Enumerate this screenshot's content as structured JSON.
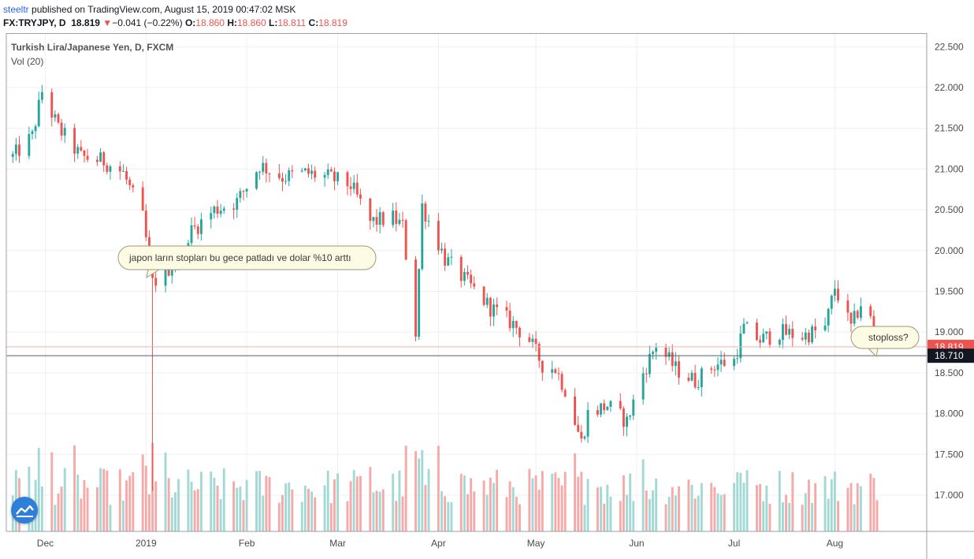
{
  "header": {
    "author": "steeltr",
    "published_text": " published on TradingView.com, August 15, 2019 00:47:02 MSK",
    "symbol": "FX:TRYJPY, D",
    "last": "18.819",
    "change_arrow": "▼",
    "change": "−0.041 (−0.22%)",
    "o_label": "O:",
    "o": "18.860",
    "h_label": "H:",
    "h": "18.860",
    "l_label": "L:",
    "l": "18.811",
    "c_label": "C:",
    "c": "18.819"
  },
  "legend": {
    "title": "Turkish Lira/Japanese Yen, D, FXCM",
    "volume": "Vol (20)"
  },
  "annotations": {
    "note1": "japon ların stopları bu gece patladı ve dolar %10 arttı",
    "note2": "stoploss?"
  },
  "colors": {
    "up": "#26a69a",
    "down": "#ef5350",
    "vol_up": "#a3d9d4",
    "vol_down": "#f5a9a8",
    "price_label_bg": "#ef5350",
    "line_label_bg": "#131722",
    "callout_bg": "#fdfbe3",
    "callout_border": "#9a9a7a",
    "logo": "#2e7fd9"
  },
  "chart_data": {
    "type": "candlestick",
    "title": "Turkish Lira/Japanese Yen, D, FXCM",
    "y_range": [
      16.55,
      22.7
    ],
    "y_ticks": [
      "22.500",
      "22.000",
      "21.500",
      "21.000",
      "20.500",
      "20.000",
      "19.500",
      "19.000",
      "18.500",
      "18.000",
      "17.500",
      "17.000"
    ],
    "x_ticks": [
      "Dec",
      "2019",
      "Feb",
      "Mar",
      "Apr",
      "May",
      "Jun",
      "Jul",
      "Aug"
    ],
    "last_price_label": "18.819",
    "horizontal_line_label": "18.710",
    "last_price": 18.819,
    "horizontal_line": 18.71,
    "volume_indicator": "Vol (20)",
    "anchors": [
      {
        "date": "2018-11-21",
        "price": 21.15
      },
      {
        "date": "2018-11-27",
        "price": 21.4
      },
      {
        "date": "2018-11-30",
        "price": 21.95
      },
      {
        "date": "2018-12-05",
        "price": 21.5
      },
      {
        "date": "2018-12-12",
        "price": 21.15
      },
      {
        "date": "2018-12-19",
        "price": 21.1
      },
      {
        "date": "2018-12-25",
        "price": 20.95
      },
      {
        "date": "2018-12-31",
        "price": 20.4
      },
      {
        "date": "2019-01-03",
        "price": 19.6
      },
      {
        "date": "2019-01-07",
        "price": 19.75
      },
      {
        "date": "2019-01-10",
        "price": 19.85
      },
      {
        "date": "2019-01-14",
        "price": 20.2
      },
      {
        "date": "2019-01-22",
        "price": 20.5
      },
      {
        "date": "2019-01-29",
        "price": 20.6
      },
      {
        "date": "2019-02-05",
        "price": 21.05
      },
      {
        "date": "2019-02-12",
        "price": 20.9
      },
      {
        "date": "2019-02-19",
        "price": 20.95
      },
      {
        "date": "2019-02-26",
        "price": 20.9
      },
      {
        "date": "2019-03-05",
        "price": 20.8
      },
      {
        "date": "2019-03-11",
        "price": 20.35
      },
      {
        "date": "2019-03-18",
        "price": 20.4
      },
      {
        "date": "2019-03-21",
        "price": 20.3
      },
      {
        "date": "2019-03-22",
        "price": 19.95
      },
      {
        "date": "2019-03-25",
        "price": 19.0
      },
      {
        "date": "2019-03-27",
        "price": 20.55
      },
      {
        "date": "2019-04-03",
        "price": 19.9
      },
      {
        "date": "2019-04-10",
        "price": 19.6
      },
      {
        "date": "2019-04-17",
        "price": 19.3
      },
      {
        "date": "2019-04-24",
        "price": 19.1
      },
      {
        "date": "2019-04-29",
        "price": 18.9
      },
      {
        "date": "2019-05-03",
        "price": 18.6
      },
      {
        "date": "2019-05-07",
        "price": 18.55
      },
      {
        "date": "2019-05-10",
        "price": 18.3
      },
      {
        "date": "2019-05-15",
        "price": 17.65
      },
      {
        "date": "2019-05-17",
        "price": 18.0
      },
      {
        "date": "2019-05-23",
        "price": 18.1
      },
      {
        "date": "2019-05-29",
        "price": 17.9
      },
      {
        "date": "2019-06-03",
        "price": 18.5
      },
      {
        "date": "2019-06-07",
        "price": 18.85
      },
      {
        "date": "2019-06-13",
        "price": 18.55
      },
      {
        "date": "2019-06-19",
        "price": 18.4
      },
      {
        "date": "2019-06-25",
        "price": 18.6
      },
      {
        "date": "2019-07-01",
        "price": 18.65
      },
      {
        "date": "2019-07-04",
        "price": 19.05
      },
      {
        "date": "2019-07-09",
        "price": 18.9
      },
      {
        "date": "2019-07-15",
        "price": 19.0
      },
      {
        "date": "2019-07-22",
        "price": 18.95
      },
      {
        "date": "2019-07-29",
        "price": 19.05
      },
      {
        "date": "2019-08-01",
        "price": 19.55
      },
      {
        "date": "2019-08-06",
        "price": 19.05
      },
      {
        "date": "2019-08-09",
        "price": 19.35
      },
      {
        "date": "2019-08-12",
        "price": 19.15
      },
      {
        "date": "2019-08-14",
        "price": 18.82
      }
    ]
  }
}
